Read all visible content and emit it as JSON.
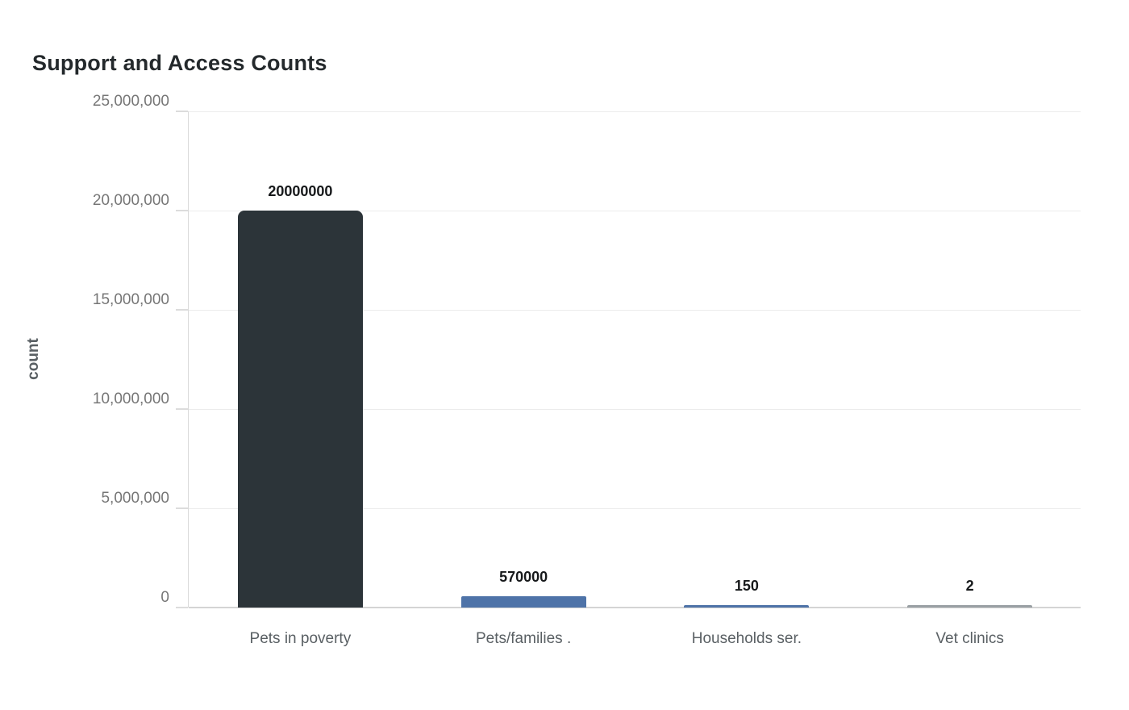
{
  "title": "Support and Access Counts",
  "chart_data": {
    "type": "bar",
    "title": "Support and Access Counts",
    "xlabel": "",
    "ylabel": "count",
    "categories": [
      "Pets in poverty",
      "Pets/families .",
      "Households ser.",
      "Vet clinics"
    ],
    "values": [
      20000000,
      570000,
      150,
      2
    ],
    "value_labels": [
      "20000000",
      "570000",
      "150",
      "2"
    ],
    "bar_colors": [
      "#2c3439",
      "#4e73a8",
      "#4e73a8",
      "#9aa0a4"
    ],
    "ylim": [
      0,
      25000000
    ],
    "yticks": [
      0,
      5000000,
      10000000,
      15000000,
      20000000,
      25000000
    ],
    "ytick_labels": [
      "0",
      "5,000,000",
      "10,000,000",
      "15,000,000",
      "20,000,000",
      "25,000,000"
    ],
    "grid": true,
    "legend": false
  },
  "colors": {
    "background": "#ffffff",
    "title_text": "#24292c",
    "axis_label_text": "#595f63",
    "tick_text": "#767676",
    "category_text": "#5a6064",
    "value_label_text": "#17191b",
    "gridline": "#ececec",
    "baseline": "#d4d4d4",
    "axis_line": "#d9d9d9"
  }
}
